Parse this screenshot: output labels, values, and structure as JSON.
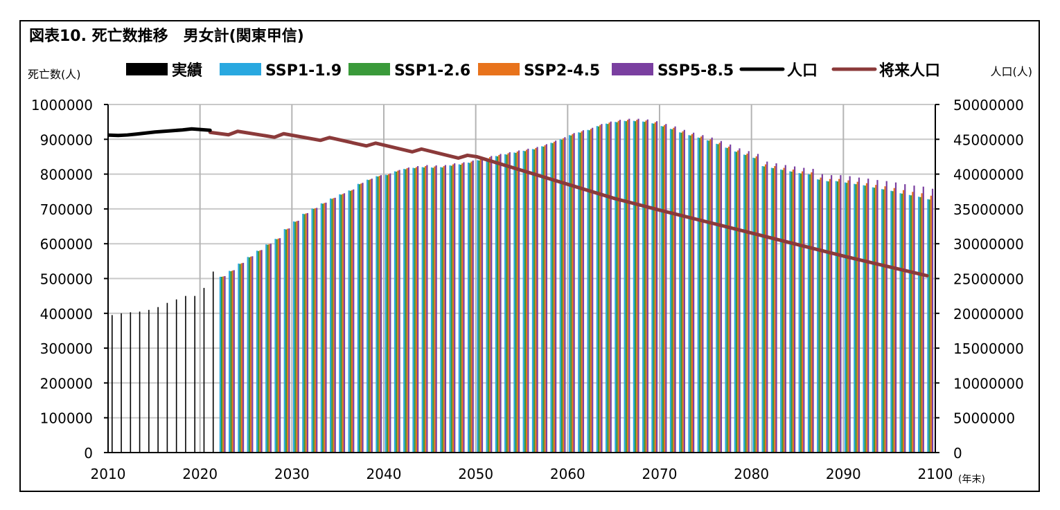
{
  "chart_data": {
    "type": "bar+line",
    "title": "図表10. 死亡数推移　男女計(関東甲信)",
    "left_axis_title": "死亡数(人)",
    "right_axis_title": "人口(人)",
    "x_unit": "(年末)",
    "xlim": [
      2010,
      2100
    ],
    "x_ticks": [
      "2010",
      "2020",
      "2030",
      "2040",
      "2050",
      "2060",
      "2070",
      "2080",
      "2090",
      "2100"
    ],
    "ylim_left": [
      0,
      1000000
    ],
    "y_ticks_left": [
      "0",
      "100000",
      "200000",
      "300000",
      "400000",
      "500000",
      "600000",
      "700000",
      "800000",
      "900000",
      "1000000"
    ],
    "ylim_right": [
      0,
      50000000
    ],
    "y_ticks_right": [
      "0",
      "5000000",
      "10000000",
      "15000000",
      "20000000",
      "25000000",
      "30000000",
      "35000000",
      "40000000",
      "45000000",
      "50000000"
    ],
    "grid": true,
    "legend": [
      {
        "label": "実績",
        "color": "#000000",
        "kind": "bar"
      },
      {
        "label": "SSP1-1.9",
        "color": "#29A8E0",
        "kind": "bar"
      },
      {
        "label": "SSP1-2.6",
        "color": "#3A9A3A",
        "kind": "bar"
      },
      {
        "label": "SSP2-4.5",
        "color": "#E8731C",
        "kind": "bar"
      },
      {
        "label": "SSP5-8.5",
        "color": "#7A3FA0",
        "kind": "bar"
      },
      {
        "label": "人口",
        "color": "#000000",
        "kind": "line"
      },
      {
        "label": "将来人口",
        "color": "#8B3A3A",
        "kind": "line"
      }
    ],
    "actual_deaths": {
      "name": "実績",
      "x": [
        2010,
        2011,
        2012,
        2013,
        2014,
        2015,
        2016,
        2017,
        2018,
        2019,
        2020,
        2021
      ],
      "values": [
        395000,
        400000,
        403000,
        405000,
        410000,
        418000,
        430000,
        440000,
        450000,
        450000,
        473000,
        520000
      ]
    },
    "projection_deaths": {
      "x": [
        2022,
        2023,
        2024,
        2025,
        2026,
        2027,
        2028,
        2029,
        2030,
        2031,
        2032,
        2033,
        2034,
        2035,
        2036,
        2037,
        2038,
        2039,
        2040,
        2041,
        2042,
        2043,
        2044,
        2045,
        2046,
        2047,
        2048,
        2049,
        2050,
        2051,
        2052,
        2053,
        2054,
        2055,
        2056,
        2057,
        2058,
        2059,
        2060,
        2061,
        2062,
        2063,
        2064,
        2065,
        2066,
        2067,
        2068,
        2069,
        2070,
        2071,
        2072,
        2073,
        2074,
        2075,
        2076,
        2077,
        2078,
        2079,
        2080,
        2081,
        2082,
        2083,
        2084,
        2085,
        2086,
        2087,
        2088,
        2089,
        2090,
        2091,
        2092,
        2093,
        2094,
        2095,
        2096,
        2097,
        2098,
        2099
      ],
      "series": [
        {
          "name": "SSP1-1.9",
          "values": [
            505000,
            522000,
            543000,
            562000,
            580000,
            598000,
            614000,
            642000,
            664000,
            686000,
            701000,
            716000,
            730000,
            742000,
            753000,
            772000,
            784000,
            794000,
            798000,
            808000,
            815000,
            818000,
            820000,
            819000,
            820000,
            825000,
            828000,
            833000,
            840000,
            846000,
            852000,
            857000,
            862000,
            867000,
            872000,
            880000,
            890000,
            900000,
            912000,
            920000,
            927000,
            938000,
            945000,
            950000,
            953000,
            953000,
            951000,
            946000,
            938000,
            930000,
            920000,
            912000,
            905000,
            897000,
            887000,
            876000,
            865000,
            856000,
            847000,
            823000,
            818000,
            813000,
            808000,
            803000,
            800000,
            785000,
            780000,
            780000,
            776000,
            772000,
            768000,
            762000,
            757000,
            752000,
            745000,
            740000,
            735000,
            728000
          ]
        },
        {
          "name": "SSP1-2.6",
          "values": [
            505000,
            521000,
            542000,
            561000,
            579000,
            597000,
            613000,
            641000,
            663000,
            685000,
            700000,
            715000,
            729000,
            741000,
            752000,
            771000,
            783000,
            793000,
            797000,
            807000,
            814000,
            817000,
            819000,
            818000,
            819000,
            824000,
            827000,
            832000,
            839000,
            845000,
            851000,
            856000,
            861000,
            866000,
            871000,
            879000,
            889000,
            899000,
            911000,
            919000,
            926000,
            937000,
            944000,
            949000,
            952000,
            952000,
            950000,
            945000,
            937000,
            929000,
            919000,
            911000,
            904000,
            896000,
            886000,
            875000,
            864000,
            855000,
            846000,
            822000,
            817000,
            812000,
            807000,
            802000,
            799000,
            784000,
            779000,
            779000,
            775000,
            771000,
            767000,
            761000,
            756000,
            751000,
            744000,
            739000,
            734000,
            727000
          ]
        },
        {
          "name": "SSP2-4.5",
          "values": [
            506000,
            523000,
            544000,
            563000,
            581000,
            599000,
            615000,
            643000,
            665000,
            687000,
            702000,
            717000,
            731000,
            743000,
            754000,
            773000,
            785000,
            795000,
            800000,
            810000,
            817000,
            820000,
            823000,
            822000,
            823000,
            828000,
            831000,
            836000,
            843000,
            849000,
            855000,
            860000,
            865000,
            870000,
            875000,
            883000,
            893000,
            903000,
            915000,
            923000,
            930000,
            941000,
            948000,
            953000,
            956000,
            956000,
            954000,
            949000,
            941000,
            933000,
            923000,
            915000,
            908000,
            900000,
            890000,
            879000,
            868000,
            859000,
            851000,
            828000,
            823000,
            818000,
            813000,
            808000,
            805000,
            790000,
            786000,
            786000,
            782000,
            778000,
            774000,
            769000,
            765000,
            760000,
            754000,
            749000,
            745000,
            738000
          ]
        },
        {
          "name": "SSP5-8.5",
          "values": [
            507000,
            524000,
            545000,
            564000,
            582000,
            600000,
            616000,
            644000,
            666000,
            688000,
            703000,
            718000,
            732000,
            745000,
            756000,
            775000,
            787000,
            797000,
            802000,
            812000,
            819000,
            823000,
            826000,
            825000,
            826000,
            831000,
            834000,
            839000,
            846000,
            852000,
            858000,
            863000,
            868000,
            873000,
            878000,
            886000,
            896000,
            906000,
            918000,
            926000,
            933000,
            944000,
            951000,
            956000,
            959000,
            959000,
            957000,
            952000,
            944000,
            937000,
            927000,
            919000,
            912000,
            905000,
            895000,
            885000,
            874000,
            866000,
            858000,
            836000,
            831000,
            826000,
            822000,
            818000,
            815000,
            800000,
            797000,
            797000,
            794000,
            790000,
            787000,
            783000,
            780000,
            776000,
            771000,
            767000,
            764000,
            758000
          ]
        }
      ]
    },
    "population_actual": {
      "name": "人口",
      "x": [
        2010,
        2011,
        2012,
        2013,
        2014,
        2015,
        2016,
        2017,
        2018,
        2019,
        2020,
        2021
      ],
      "values": [
        45600000,
        45550000,
        45620000,
        45750000,
        45900000,
        46050000,
        46150000,
        46250000,
        46350000,
        46500000,
        46400000,
        46300000
      ]
    },
    "population_future": {
      "name": "将来人口",
      "x": [
        2021,
        2023,
        2024,
        2028,
        2029,
        2033,
        2034,
        2038,
        2039,
        2043,
        2044,
        2048,
        2049,
        2050,
        2060,
        2065,
        2070,
        2080,
        2090,
        2099
      ],
      "values": [
        46000000,
        45650000,
        46150000,
        45300000,
        45800000,
        44850000,
        45250000,
        44050000,
        44450000,
        43200000,
        43600000,
        42300000,
        42700000,
        42500000,
        38500000,
        36500000,
        34800000,
        31500000,
        28200000,
        25400000
      ]
    }
  }
}
